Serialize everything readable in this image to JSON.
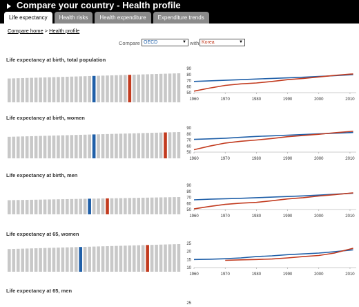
{
  "window": {
    "title": "Compare your country - Health profile"
  },
  "tabs": [
    {
      "label": "Life expectancy",
      "active": true
    },
    {
      "label": "Health risks",
      "active": false
    },
    {
      "label": "Health expenditure",
      "active": false
    },
    {
      "label": "Expenditure trends",
      "active": false
    }
  ],
  "breadcrumb": {
    "home": "Compare home",
    "separator": ">",
    "current": "Health profile"
  },
  "compare": {
    "label": "Compare >",
    "selected_a": "OECD",
    "with_label": "with",
    "selected_b": "Korea"
  },
  "colors": {
    "oecd": "#1f5fa8",
    "korea": "#c23b1f",
    "bar": "#c8c8c8",
    "topbar": "#000000"
  },
  "sections": [
    {
      "title": "Life expectancy at birth, total population",
      "ranking": {
        "count": 39,
        "oecd_rank": 20,
        "korea_rank": 28
      },
      "chart": {
        "x_ticks": [
          "1960",
          "1970",
          "1980",
          "1990",
          "2000",
          "2010"
        ],
        "y_ticks": [
          "50",
          "60",
          "70",
          "80",
          "90"
        ],
        "ylim": [
          50,
          90
        ],
        "series": [
          {
            "name": "OECD",
            "x": [
              1960,
              1965,
              1970,
              1975,
              1980,
              1985,
              1990,
              1995,
              2000,
              2005,
              2011
            ],
            "y": [
              68.5,
              69.5,
              70.5,
              71.5,
              72.5,
              73.5,
              74.5,
              75.5,
              76.8,
              78.0,
              79.8
            ]
          },
          {
            "name": "Korea",
            "x": [
              1960,
              1965,
              1970,
              1975,
              1980,
              1985,
              1990,
              1995,
              2000,
              2005,
              2011
            ],
            "y": [
              52.5,
              57.5,
              62.0,
              64.5,
              66.0,
              68.5,
              71.5,
              73.5,
              76.0,
              78.5,
              81.0
            ]
          }
        ]
      }
    },
    {
      "title": "Life expectancy at birth, women",
      "ranking": {
        "count": 39,
        "oecd_rank": 20,
        "korea_rank": 36
      },
      "chart": {
        "x_ticks": [
          "1960",
          "1970",
          "1980",
          "1990",
          "2000",
          "2010"
        ],
        "y_ticks": [
          "50",
          "60",
          "70",
          "80",
          "90"
        ],
        "ylim": [
          50,
          90
        ],
        "series": [
          {
            "name": "OECD",
            "x": [
              1960,
              1965,
              1970,
              1975,
              1980,
              1985,
              1990,
              1995,
              2000,
              2005,
              2011
            ],
            "y": [
              71.0,
              72.0,
              73.0,
              74.5,
              76.0,
              77.0,
              78.0,
              79.0,
              80.2,
              81.2,
              82.5
            ]
          },
          {
            "name": "Korea",
            "x": [
              1960,
              1965,
              1970,
              1975,
              1980,
              1985,
              1990,
              1995,
              2000,
              2005,
              2011
            ],
            "y": [
              54.0,
              60.0,
              65.0,
              68.0,
              70.0,
              72.5,
              75.5,
              77.5,
              79.5,
              82.0,
              84.5
            ]
          }
        ]
      }
    },
    {
      "title": "Life expectancy at birth, men",
      "ranking": {
        "count": 39,
        "oecd_rank": 19,
        "korea_rank": 23
      },
      "chart": {
        "x_ticks": [
          "1960",
          "1970",
          "1980",
          "1990",
          "2000",
          "2010"
        ],
        "y_ticks": [
          "50",
          "60",
          "70",
          "80",
          "90"
        ],
        "ylim": [
          50,
          90
        ],
        "series": [
          {
            "name": "OECD",
            "x": [
              1960,
              1965,
              1970,
              1975,
              1980,
              1985,
              1990,
              1995,
              2000,
              2005,
              2011
            ],
            "y": [
              66.0,
              67.0,
              67.8,
              68.5,
              69.5,
              70.5,
              71.5,
              72.5,
              73.8,
              75.2,
              77.0
            ]
          },
          {
            "name": "Korea",
            "x": [
              1960,
              1965,
              1970,
              1975,
              1980,
              1985,
              1990,
              1995,
              2000,
              2005,
              2011
            ],
            "y": [
              51.0,
              55.0,
              58.5,
              60.5,
              61.8,
              64.5,
              67.5,
              69.5,
              72.3,
              74.5,
              77.5
            ]
          }
        ]
      }
    },
    {
      "title": "Life expectancy at 65, women",
      "ranking": {
        "count": 39,
        "oecd_rank": 17,
        "korea_rank": 32
      },
      "chart": {
        "x_ticks": [
          "1960",
          "1970",
          "1980",
          "1990",
          "2000",
          "2010"
        ],
        "y_ticks": [
          "10",
          "15",
          "20",
          "25"
        ],
        "ylim": [
          10,
          25
        ],
        "series": [
          {
            "name": "OECD",
            "x": [
              1960,
              1965,
              1970,
              1975,
              1980,
              1985,
              1990,
              1995,
              2000,
              2005,
              2011
            ],
            "y": [
              15.0,
              15.2,
              15.5,
              16.0,
              16.8,
              17.3,
              18.0,
              18.5,
              19.0,
              19.8,
              21.0
            ]
          },
          {
            "name": "Korea",
            "x": [
              1970,
              1975,
              1980,
              1985,
              1990,
              1995,
              2000,
              2005,
              2008,
              2011
            ],
            "y": [
              14.5,
              14.8,
              15.0,
              15.3,
              16.0,
              16.8,
              17.5,
              19.0,
              20.5,
              22.0
            ]
          }
        ]
      }
    },
    {
      "title": "Life expectancy at 65, men",
      "ranking": null,
      "chart": {
        "x_ticks": [],
        "y_ticks": [
          "25"
        ],
        "ylim": [
          10,
          25
        ],
        "series": []
      }
    }
  ]
}
